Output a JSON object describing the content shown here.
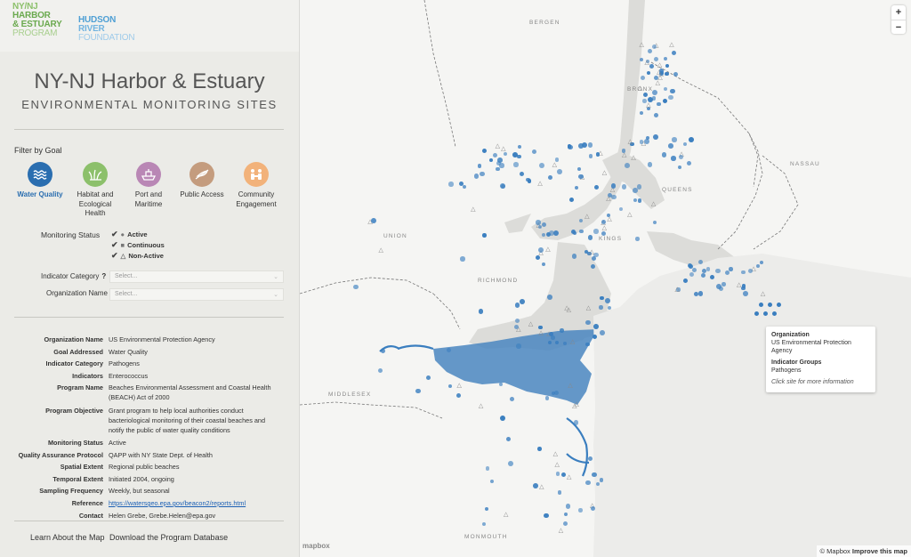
{
  "logos": {
    "nynj_lines": [
      "NY/NJ",
      "HARBOR",
      "& ESTUARY",
      "PROGRAM"
    ],
    "hudson_lines": [
      "HUDSON",
      "RIVER",
      "FOUNDATION"
    ]
  },
  "header": {
    "title": "NY-NJ Harbor & Estuary",
    "subtitle": "ENVIRONMENTAL MONITORING SITES"
  },
  "filter": {
    "label": "Filter by Goal",
    "goals": [
      {
        "label": "Water Quality",
        "color": "#2a6eb0",
        "icon": "waves-icon",
        "selected": true
      },
      {
        "label": "Habitat and Ecological Health",
        "color": "#8cc06b",
        "icon": "grass-icon",
        "selected": false
      },
      {
        "label": "Port and Maritime",
        "color": "#b987b5",
        "icon": "ship-icon",
        "selected": false
      },
      {
        "label": "Public Access",
        "color": "#c49c7e",
        "icon": "kayak-icon",
        "selected": false
      },
      {
        "label": "Community Engagement",
        "color": "#f2b27a",
        "icon": "people-icon",
        "selected": false
      }
    ]
  },
  "monitoring_status": {
    "label": "Monitoring Status",
    "options": [
      {
        "symbol": "●",
        "label": "Active"
      },
      {
        "symbol": "■",
        "label": "Continuous"
      },
      {
        "symbol": "△",
        "label": "Non-Active"
      }
    ]
  },
  "selects": {
    "indicator_category": {
      "label": "Indicator Category",
      "help": "?",
      "placeholder": "Select..."
    },
    "organization_name": {
      "label": "Organization Name",
      "placeholder": "Select..."
    }
  },
  "details": [
    {
      "key": "Organization Name",
      "value": "US Environmental Protection Agency"
    },
    {
      "key": "Goal Addressed",
      "value": "Water Quality"
    },
    {
      "key": "Indicator Category",
      "value": "Pathogens"
    },
    {
      "key": "Indicators",
      "value": "Enterococcus"
    },
    {
      "key": "Program Name",
      "value": "Beaches Environmental Assessment and Coastal Health (BEACH) Act of 2000"
    },
    {
      "key": "Program Objective",
      "value": "Grant program to help local authorities conduct bacteriological monitoring of their coastal beaches and notify the public of water quality conditions"
    },
    {
      "key": "Monitoring Status",
      "value": "Active"
    },
    {
      "key": "Quality Assurance Protocol",
      "value": "QAPP with NY State Dept. of Health"
    },
    {
      "key": "Spatial Extent",
      "value": "Regional public beaches"
    },
    {
      "key": "Temporal Extent",
      "value": "Initiated 2004, ongoing"
    },
    {
      "key": "Sampling Frequency",
      "value": "Weekly, but seasonal"
    },
    {
      "key": "Reference",
      "value": "https://watersgeo.epa.gov/beacon2/reports.html"
    },
    {
      "key": "Contact",
      "value": "Helen Grebe, Grebe.Helen@epa.gov"
    }
  ],
  "footer": {
    "learn": "Learn About the Map",
    "download": "Download the Program Database"
  },
  "map": {
    "zoom_in": "+",
    "zoom_out": "−",
    "places": [
      "BERGEN",
      "BRONX",
      "NASSAU",
      "QUEENS",
      "KINGS",
      "UNION",
      "RICHMOND",
      "MIDDLESEX",
      "MONMOUTH"
    ],
    "site_color": "#3a7ebf",
    "highlight_color": "#4a86c0",
    "attribution": "© Mapbox",
    "improve": "Improve this map",
    "mapbox_logo": "mapbox",
    "tooltip": {
      "org_heading": "Organization",
      "org_value": "US Environmental Protection Agency",
      "ind_heading": "Indicator Groups",
      "ind_value": "Pathogens",
      "hint": "Click site for more information"
    }
  }
}
